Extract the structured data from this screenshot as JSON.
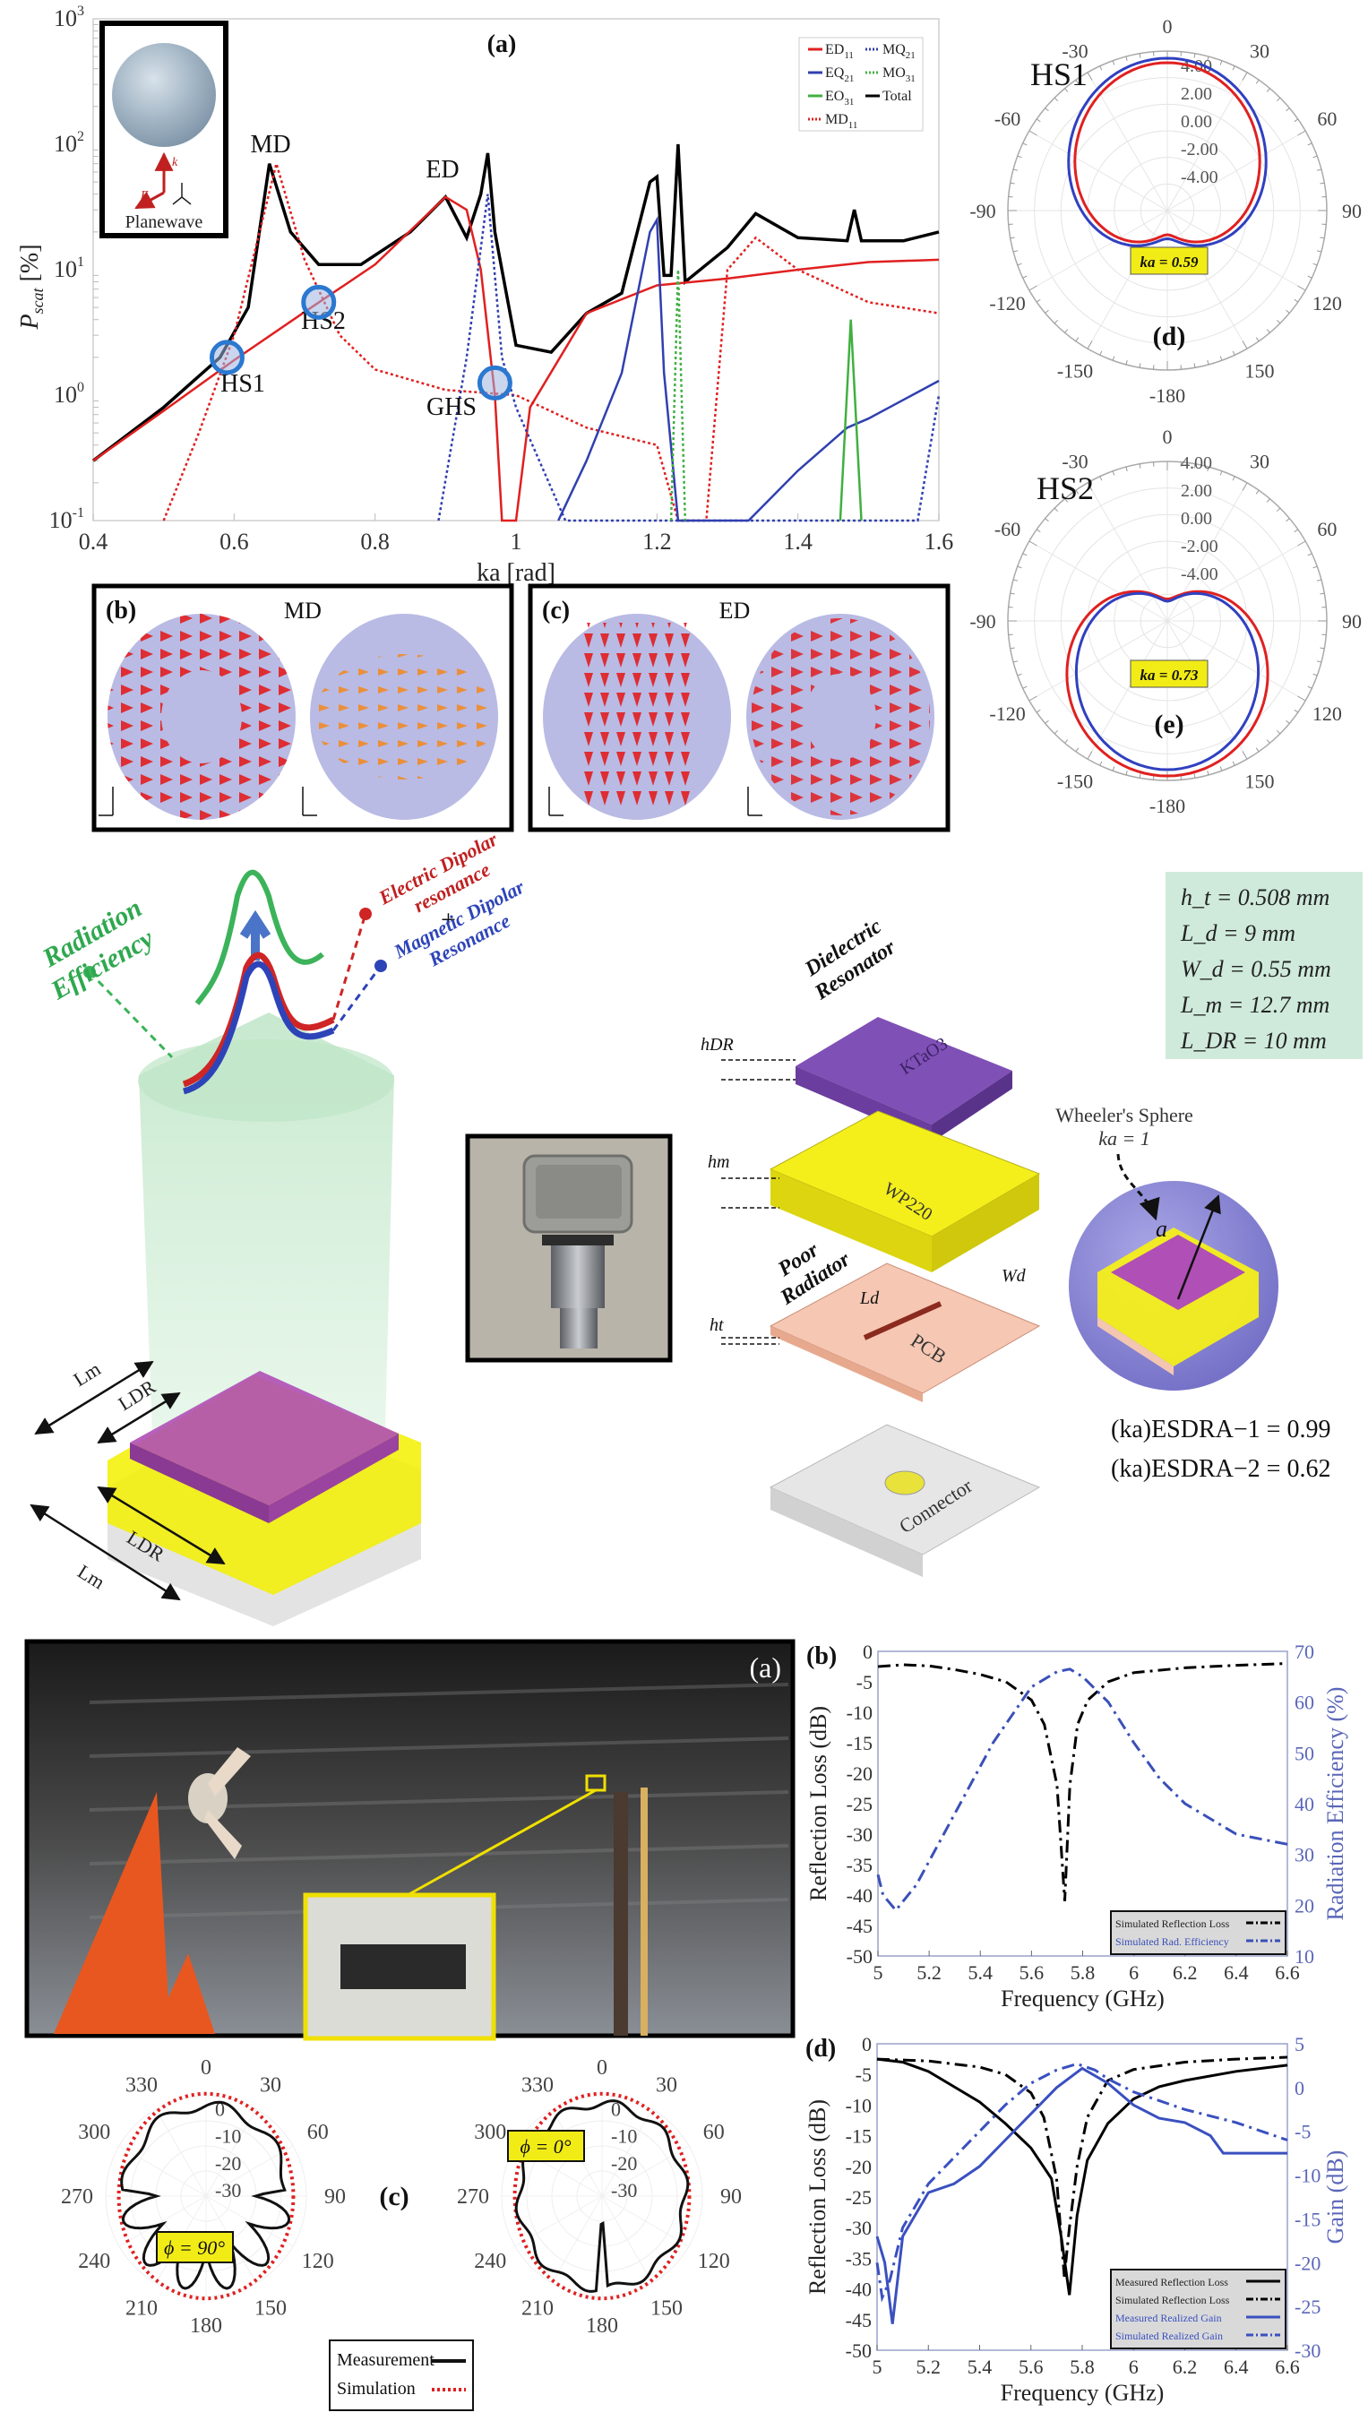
{
  "figure": {
    "panel_a_top": {
      "label": "(a)",
      "title_inset": "Planewave",
      "inset_vectors": {
        "k": "k",
        "E": "E"
      },
      "annotations": [
        "MD",
        "ED",
        "HS1",
        "HS2",
        "GHS"
      ],
      "xlabel": "ka [rad]",
      "ylabel": "P_scat [%]"
    },
    "panel_b_top": {
      "label": "(b)",
      "title": "MD"
    },
    "panel_c_top": {
      "label": "(c)",
      "title": "ED"
    },
    "panel_d_top": {
      "label": "(d)",
      "name": "HS1",
      "badge": "ka = 0.59"
    },
    "panel_e_top": {
      "label": "(e)",
      "name": "HS2",
      "badge": "ka = 0.73"
    },
    "concept": {
      "radiation_efficiency": [
        "Radiation",
        "Efficiency"
      ],
      "electric": [
        "Electric Dipolar",
        "resonance"
      ],
      "plus": "+",
      "magnetic": [
        "Magnetic Dipolar",
        "Resonance"
      ],
      "dims": {
        "lm": "Lm",
        "ldr": "LDR"
      }
    },
    "exploded": {
      "dielectric_resonator": [
        "Dielectric",
        "Resonator"
      ],
      "dr_material": "KTaO3",
      "middle_material": "WP220",
      "poor_radiator": [
        "Poor",
        "Radiator"
      ],
      "pcb": "PCB",
      "connector": "Connector",
      "dims": {
        "hdr": "hDR",
        "hm": "hm",
        "ht": "ht",
        "ld": "Ld",
        "wd": "Wd"
      }
    },
    "params": [
      "h_t = 0.508 mm",
      "L_d = 9 mm",
      "W_d = 0.55 mm",
      "L_m = 12.7 mm",
      "L_DR = 10 mm"
    ],
    "wheeler": {
      "title": "Wheeler's Sphere",
      "ka": "ka = 1",
      "radius": "a",
      "esdra1": "(ka)ESDRA−1 = 0.99",
      "esdra2": "(ka)ESDRA−2 = 0.62"
    },
    "photo_a": {
      "label": "(a)"
    },
    "panel_c_bottom": {
      "label": "(c)",
      "badge_left": "ϕ = 90°",
      "badge_right": "ϕ = 0°",
      "legend": [
        "Measurement",
        "Simulation"
      ]
    }
  },
  "chart_data": [
    {
      "id": "scattering",
      "type": "line",
      "title": "(a)",
      "xlabel": "ka [rad]",
      "ylabel": "P_scat [%]",
      "xlim": [
        0.4,
        1.6
      ],
      "ylim": [
        0.1,
        1000
      ],
      "yscale": "log",
      "xticks": [
        "0.4",
        "0.6",
        "0.8",
        "1",
        "1.2",
        "1.4",
        "1.6"
      ],
      "yticks": [
        "10^-1",
        "10^0",
        "10^1",
        "10^2",
        "10^3"
      ],
      "legend": [
        "ED11",
        "MQ21",
        "EQ21",
        "MO31",
        "EO31",
        "Total",
        "MD11"
      ],
      "legend_position": "top-right",
      "series": [
        {
          "name": "Total",
          "color": "#000000",
          "style": "solid",
          "x": [
            0.4,
            0.5,
            0.58,
            0.62,
            0.65,
            0.68,
            0.72,
            0.78,
            0.85,
            0.9,
            0.93,
            0.95,
            0.96,
            0.97,
            1.0,
            1.05,
            1.1,
            1.15,
            1.19,
            1.2,
            1.21,
            1.22,
            1.23,
            1.24,
            1.3,
            1.34,
            1.4,
            1.47,
            1.48,
            1.49,
            1.55,
            1.6
          ],
          "y": [
            0.3,
            0.8,
            2.0,
            5.0,
            70,
            20,
            11,
            11,
            20,
            38,
            18,
            40,
            85,
            20,
            2.5,
            2.2,
            4.5,
            6.5,
            50,
            55,
            9,
            9,
            100,
            8,
            15,
            28,
            18,
            17,
            30,
            17,
            17,
            20
          ]
        },
        {
          "name": "ED11",
          "color": "#e02020",
          "style": "solid",
          "x": [
            0.4,
            0.5,
            0.6,
            0.7,
            0.8,
            0.9,
            0.93,
            0.95,
            0.97,
            0.98,
            1.0,
            1.02,
            1.1,
            1.2,
            1.3,
            1.4,
            1.5,
            1.6
          ],
          "y": [
            0.3,
            0.75,
            1.9,
            4.6,
            11,
            38,
            30,
            10,
            1.0,
            0.1,
            0.1,
            0.8,
            4.5,
            7.5,
            8.5,
            10,
            11.5,
            12
          ]
        },
        {
          "name": "MD11",
          "color": "#e02020",
          "style": "dotted",
          "x": [
            0.5,
            0.55,
            0.6,
            0.66,
            0.7,
            0.75,
            0.8,
            0.9,
            1.0,
            1.1,
            1.2,
            1.23,
            1.27,
            1.3,
            1.34,
            1.4,
            1.5,
            1.6
          ],
          "y": [
            0.1,
            0.5,
            3,
            70,
            12,
            3,
            1.6,
            1.1,
            1.0,
            0.55,
            0.4,
            0.1,
            0.1,
            10,
            18,
            10,
            5.5,
            4.5
          ]
        },
        {
          "name": "EQ21",
          "color": "#3040b0",
          "style": "solid",
          "x": [
            1.06,
            1.1,
            1.15,
            1.19,
            1.2,
            1.21,
            1.23,
            1.33,
            1.4,
            1.47,
            1.5,
            1.6
          ],
          "y": [
            0.1,
            0.3,
            1.5,
            20,
            25,
            1.5,
            0.1,
            0.1,
            0.25,
            0.55,
            0.65,
            1.3
          ]
        },
        {
          "name": "MQ21",
          "color": "#3040b0",
          "style": "dotted",
          "x": [
            0.89,
            0.93,
            0.96,
            0.98,
            1.0,
            1.07,
            1.57,
            1.6
          ],
          "y": [
            0.1,
            2,
            40,
            2,
            0.8,
            0.1,
            0.1,
            1.0
          ]
        },
        {
          "name": "MO31",
          "color": "#40b040",
          "style": "dotted",
          "x": [
            1.22,
            1.23,
            1.24
          ],
          "y": [
            0.1,
            10,
            0.1
          ]
        },
        {
          "name": "EO31",
          "color": "#40b040",
          "style": "solid",
          "x": [
            1.46,
            1.475,
            1.49
          ],
          "y": [
            0.1,
            4,
            0.1
          ]
        }
      ],
      "markers": [
        {
          "label": "HS1",
          "x": 0.59,
          "y": 2.0
        },
        {
          "label": "HS2",
          "x": 0.72,
          "y": 5.5
        },
        {
          "label": "GHS",
          "x": 0.97,
          "y": 1.25
        },
        {
          "label": "MD",
          "x": 0.66,
          "y": 70
        },
        {
          "label": "ED",
          "x": 0.9,
          "y": 38
        }
      ]
    },
    {
      "id": "hs1_polar",
      "type": "polar",
      "title": "HS1",
      "annotation": "ka = 0.59",
      "angle_ticks": [
        "0",
        "30",
        "60",
        "90",
        "120",
        "150",
        "-180",
        "-150",
        "-120",
        "-90",
        "-60",
        "-30"
      ],
      "radial_ticks": [
        "4.00",
        "2.00",
        "0.00",
        "-2.00",
        "-4.00"
      ],
      "series": [
        {
          "name": "red",
          "color": "#e02020"
        },
        {
          "name": "blue",
          "color": "#3040c0"
        }
      ]
    },
    {
      "id": "hs2_polar",
      "type": "polar",
      "title": "HS2",
      "annotation": "ka = 0.73",
      "angle_ticks": [
        "0",
        "30",
        "60",
        "90",
        "120",
        "150",
        "-180",
        "-150",
        "-120",
        "-90",
        "-60",
        "-30"
      ],
      "radial_ticks": [
        "4.00",
        "2.00",
        "0.00",
        "-2.00",
        "-4.00"
      ],
      "series": [
        {
          "name": "red",
          "color": "#e02020"
        },
        {
          "name": "blue",
          "color": "#3040c0"
        }
      ]
    },
    {
      "id": "rl_efficiency",
      "type": "line",
      "title": "(b)",
      "xlabel": "Frequency (GHz)",
      "ylabel": "Reflection Loss (dB)",
      "ylabel_right": "Radiation Efficiency (%)",
      "xlim": [
        5,
        6.6
      ],
      "ylim": [
        -50,
        0
      ],
      "ylim_right": [
        10,
        70
      ],
      "xticks": [
        "5",
        "5.2",
        "5.4",
        "5.6",
        "5.8",
        "6",
        "6.2",
        "6.4",
        "6.6"
      ],
      "yticks": [
        "0",
        "-5",
        "-10",
        "-15",
        "-20",
        "-25",
        "-30",
        "-35",
        "-40",
        "-45",
        "-50"
      ],
      "yticks_right": [
        "70",
        "60",
        "50",
        "40",
        "30",
        "20",
        "10"
      ],
      "legend": [
        "Simulated Reflection Loss",
        "Simulated Rad. Efficiency"
      ],
      "legend_position": "bottom-right",
      "series": [
        {
          "name": "Simulated Reflection Loss",
          "color": "#000000",
          "style": "dashdot",
          "axis": "left",
          "x": [
            5.0,
            5.1,
            5.2,
            5.3,
            5.4,
            5.5,
            5.6,
            5.65,
            5.7,
            5.73,
            5.75,
            5.78,
            5.82,
            5.9,
            6.0,
            6.2,
            6.4,
            6.6
          ],
          "y": [
            -2.5,
            -2.2,
            -2.4,
            -3,
            -3.8,
            -5,
            -8,
            -12,
            -22,
            -41,
            -22,
            -12,
            -8,
            -5,
            -3.5,
            -2.7,
            -2.3,
            -2
          ]
        },
        {
          "name": "Simulated Rad. Efficiency",
          "color": "#3a50b8",
          "style": "dashdot",
          "axis": "right",
          "x": [
            5.0,
            5.02,
            5.07,
            5.15,
            5.3,
            5.45,
            5.6,
            5.7,
            5.75,
            5.8,
            5.9,
            6.0,
            6.1,
            6.2,
            6.3,
            6.4,
            6.5,
            6.6
          ],
          "y": [
            26,
            22,
            19,
            24,
            38,
            52,
            63,
            66,
            66.5,
            65,
            60,
            52,
            45,
            40,
            37,
            34,
            33,
            32
          ]
        }
      ]
    },
    {
      "id": "radiation_patterns",
      "type": "polar",
      "title": "(c)",
      "angle_ticks": [
        "0",
        "30",
        "60",
        "90",
        "120",
        "150",
        "180",
        "210",
        "240",
        "270",
        "300",
        "330"
      ],
      "radial_ticks": [
        "0",
        "-10",
        "-20",
        "-30"
      ],
      "legend": [
        "Measurement",
        "Simulation"
      ],
      "subplots": [
        {
          "label": "ϕ = 90°"
        },
        {
          "label": "ϕ = 0°"
        }
      ],
      "series": [
        {
          "name": "Measurement",
          "color": "#000000",
          "style": "solid"
        },
        {
          "name": "Simulation",
          "color": "#e02020",
          "style": "dotted"
        }
      ]
    },
    {
      "id": "rl_gain",
      "type": "line",
      "title": "(d)",
      "xlabel": "Frequency (GHz)",
      "ylabel": "Reflection Loss (dB)",
      "ylabel_right": "Gain (dB)",
      "xlim": [
        5,
        6.6
      ],
      "ylim": [
        -50,
        0
      ],
      "ylim_right": [
        -30,
        5
      ],
      "xticks": [
        "5",
        "5.2",
        "5.4",
        "5.6",
        "5.8",
        "6",
        "6.2",
        "6.4",
        "6.6"
      ],
      "yticks": [
        "0",
        "-5",
        "-10",
        "-15",
        "-20",
        "-25",
        "-30",
        "-35",
        "-40",
        "-45",
        "-50"
      ],
      "yticks_right": [
        "5",
        "0",
        "-5",
        "-10",
        "-15",
        "-20",
        "-25",
        "-30"
      ],
      "legend": [
        "Measured Reflection Loss",
        "Simulated Reflection Loss",
        "Measured Realized Gain",
        "Simulated Realized Gain"
      ],
      "legend_position": "bottom-right",
      "series": [
        {
          "name": "Measured Reflection Loss",
          "color": "#000000",
          "style": "solid",
          "axis": "left",
          "x": [
            5.0,
            5.1,
            5.2,
            5.3,
            5.4,
            5.5,
            5.6,
            5.68,
            5.72,
            5.75,
            5.78,
            5.82,
            5.9,
            6.0,
            6.1,
            6.2,
            6.4,
            6.6
          ],
          "y": [
            -2.5,
            -3,
            -4.5,
            -7,
            -9.5,
            -13,
            -17,
            -22,
            -32,
            -41,
            -28,
            -19,
            -13,
            -9,
            -7,
            -6,
            -4.5,
            -3.5
          ]
        },
        {
          "name": "Simulated Reflection Loss",
          "color": "#000000",
          "style": "dashdot",
          "axis": "left",
          "x": [
            5.0,
            5.2,
            5.4,
            5.5,
            5.6,
            5.65,
            5.7,
            5.73,
            5.75,
            5.78,
            5.82,
            5.9,
            6.0,
            6.2,
            6.4,
            6.6
          ],
          "y": [
            -2.5,
            -2.8,
            -3.8,
            -5,
            -8,
            -12,
            -22,
            -38,
            -30,
            -20,
            -12,
            -6,
            -4.2,
            -3,
            -2.5,
            -2.2
          ]
        },
        {
          "name": "Measured Realized Gain",
          "color": "#3a50c0",
          "style": "solid",
          "axis": "right",
          "x": [
            5.0,
            5.03,
            5.06,
            5.1,
            5.2,
            5.3,
            5.4,
            5.5,
            5.6,
            5.7,
            5.8,
            5.9,
            6.0,
            6.1,
            6.2,
            6.3,
            6.35,
            6.4,
            6.5,
            6.6
          ],
          "y": [
            -17,
            -20,
            -27,
            -17,
            -12,
            -11,
            -9,
            -6,
            -3,
            0,
            2.2,
            0.5,
            -2,
            -3.5,
            -4,
            -5.5,
            -7.5,
            -7.5,
            -7.5,
            -7.5
          ]
        },
        {
          "name": "Simulated Realized Gain",
          "color": "#3a50c0",
          "style": "dashdot",
          "axis": "right",
          "x": [
            5.0,
            5.02,
            5.05,
            5.1,
            5.2,
            5.3,
            5.4,
            5.5,
            5.6,
            5.7,
            5.78,
            5.85,
            5.9,
            6.0,
            6.2,
            6.4,
            6.6
          ],
          "y": [
            -20,
            -24,
            -22,
            -16,
            -11,
            -8,
            -5,
            -2,
            0.5,
            2,
            2.7,
            2,
            1,
            -0.5,
            -2.5,
            -4,
            -6
          ]
        }
      ]
    }
  ]
}
